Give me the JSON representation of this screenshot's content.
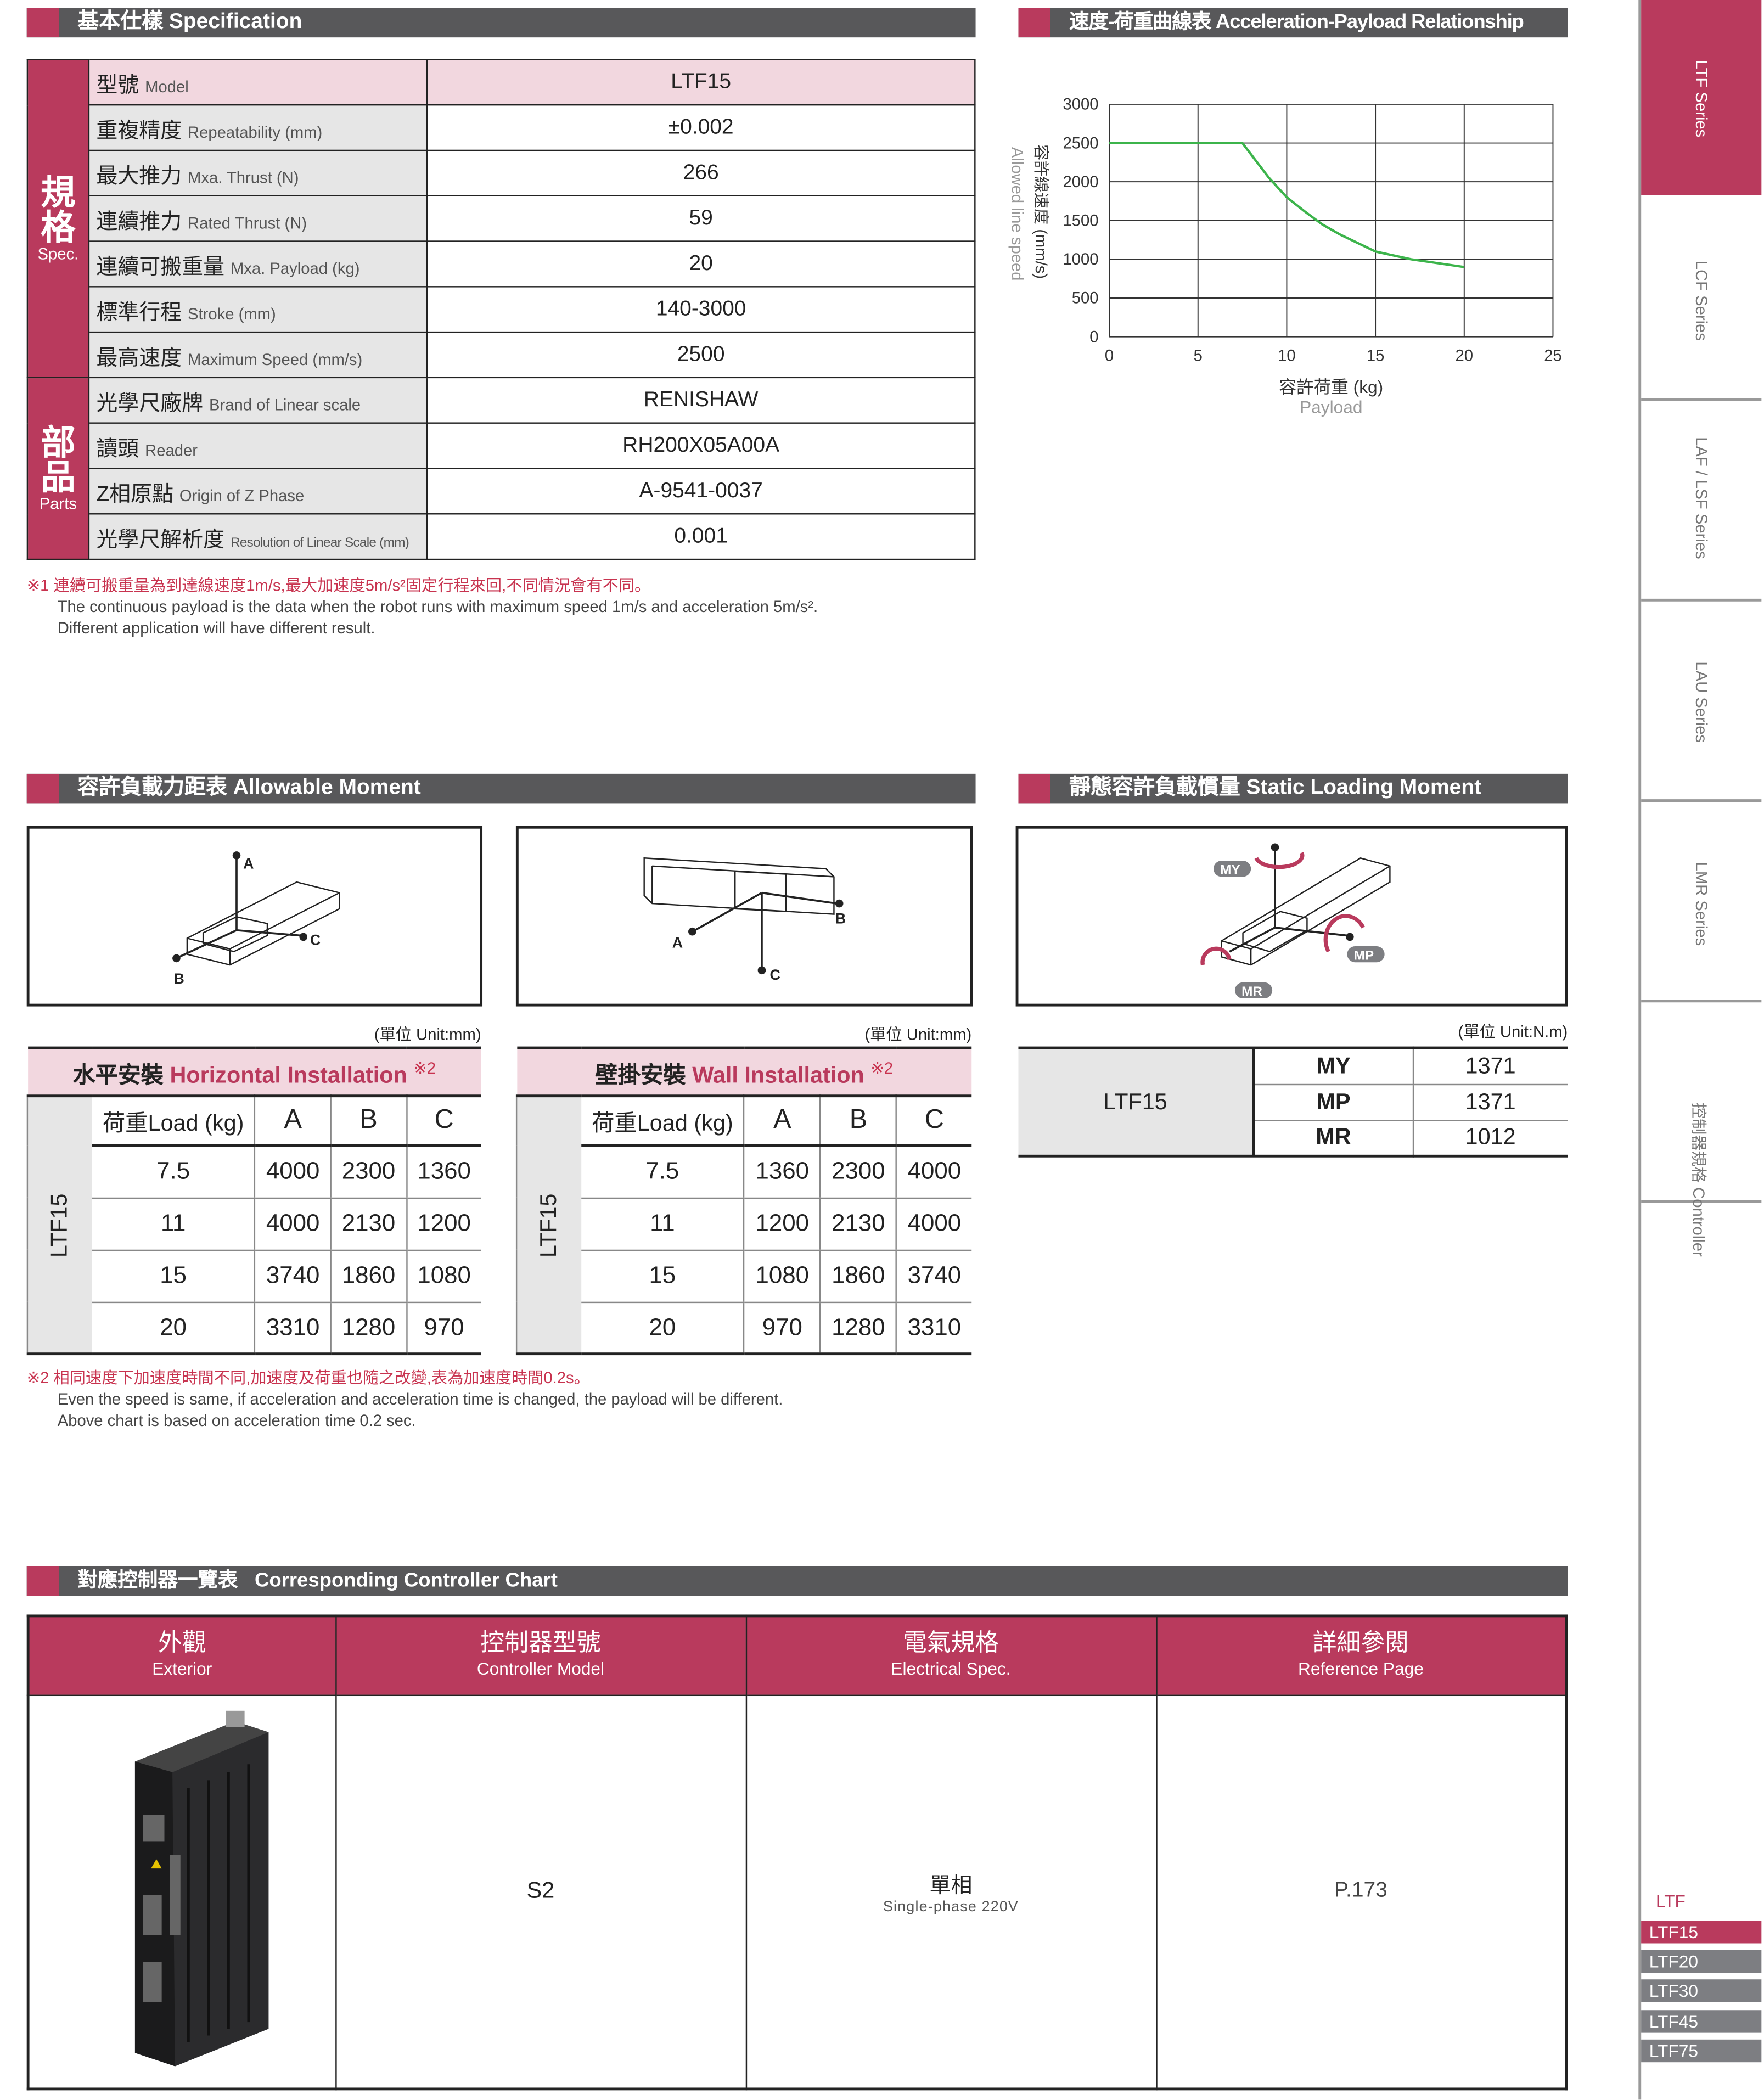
{
  "spec": {
    "title": "基本仕樣 Specification",
    "group_spec": {
      "zh": "規格",
      "en": "Spec."
    },
    "group_parts": {
      "zh": "部品",
      "en": "Parts"
    },
    "rows": [
      {
        "zh": "型號",
        "en": "Model",
        "value": "LTF15"
      },
      {
        "zh": "重複精度",
        "en": "Repeatability (mm)",
        "value": "±0.002"
      },
      {
        "zh": "最大推力",
        "en": "Mxa. Thrust (N)",
        "value": "266"
      },
      {
        "zh": "連續推力",
        "en": "Rated Thrust (N)",
        "value": "59"
      },
      {
        "zh": "連續可搬重量",
        "en": "Mxa. Payload (kg)",
        "value": "20"
      },
      {
        "zh": "標準行程",
        "en": "Stroke (mm)",
        "value": "140-3000"
      },
      {
        "zh": "最高速度",
        "en": "Maximum Speed (mm/s)",
        "value": "2500"
      },
      {
        "zh": "光學尺廠牌",
        "en": "Brand of Linear scale",
        "value": "RENISHAW"
      },
      {
        "zh": "讀頭",
        "en": "Reader",
        "value": "RH200X05A00A"
      },
      {
        "zh": "Z相原點",
        "en": "Origin of Z Phase",
        "value": "A-9541-0037"
      },
      {
        "zh": "光學尺解析度",
        "en": "Resolution of Linear Scale (mm)",
        "value": "0.001"
      }
    ],
    "note1_zh": "※1 連續可搬重量為到達線速度1m/s,最大加速度5m/s²固定行程來回,不同情況會有不同。",
    "note1_en1": "The continuous payload is the data when the robot runs with maximum speed 1m/s and acceleration 5m/s².",
    "note1_en2": "Different application will have different result."
  },
  "chart_section": {
    "title": "速度-荷重曲線表 Acceleration-Payload Relationship"
  },
  "chart_data": {
    "type": "line",
    "title": "",
    "xlabel": "容許荷重 (kg)",
    "xlabel_en": "Payload",
    "ylabel": "容許線速度 (mm/s)",
    "ylabel_en": "Allowed line speed",
    "xlim": [
      0,
      25
    ],
    "ylim": [
      0,
      3000
    ],
    "xticks": [
      0,
      5,
      10,
      15,
      20,
      25
    ],
    "yticks": [
      0,
      500,
      1000,
      1500,
      2000,
      2500,
      3000
    ],
    "grid": true,
    "line_color": "#3cb44b",
    "x": [
      0,
      7.5,
      9,
      10,
      11,
      12,
      13,
      15,
      17,
      20
    ],
    "y": [
      2500,
      2500,
      2050,
      1800,
      1620,
      1450,
      1320,
      1100,
      1000,
      900
    ]
  },
  "moment": {
    "title": "容許負載力距表 Allowable Moment",
    "unit": "(單位 Unit:mm)",
    "note_mark": "※2",
    "axes": {
      "a": "A",
      "b": "B",
      "c": "C"
    },
    "horizontal": {
      "title_zh": "水平安裝",
      "title_en": "Horizontal Installation",
      "model": "LTF15",
      "headers": [
        "荷重Load (kg)",
        "A",
        "B",
        "C"
      ],
      "rows": [
        [
          "7.5",
          "4000",
          "2300",
          "1360"
        ],
        [
          "11",
          "4000",
          "2130",
          "1200"
        ],
        [
          "15",
          "3740",
          "1860",
          "1080"
        ],
        [
          "20",
          "3310",
          "1280",
          "970"
        ]
      ]
    },
    "wall": {
      "title_zh": "壁掛安裝",
      "title_en": "Wall Installation",
      "model": "LTF15",
      "headers": [
        "荷重Load (kg)",
        "A",
        "B",
        "C"
      ],
      "rows": [
        [
          "7.5",
          "1360",
          "2300",
          "4000"
        ],
        [
          "11",
          "1200",
          "2130",
          "4000"
        ],
        [
          "15",
          "1080",
          "1860",
          "3740"
        ],
        [
          "20",
          "970",
          "1280",
          "3310"
        ]
      ]
    },
    "note2_zh": "※2 相同速度下加速度時間不同,加速度及荷重也隨之改變,表為加速度時間0.2s。",
    "note2_en1": "Even the speed is same, if acceleration and acceleration time is changed, the payload will be different.",
    "note2_en2": "Above chart is based on acceleration time 0.2 sec."
  },
  "static": {
    "title": "靜態容許負載慣量 Static Loading Moment",
    "unit": "(單位 Unit:N.m)",
    "model": "LTF15",
    "labels": {
      "my": "MY",
      "mp": "MP",
      "mr": "MR"
    },
    "rows": [
      {
        "k": "MY",
        "v": "1371"
      },
      {
        "k": "MP",
        "v": "1371"
      },
      {
        "k": "MR",
        "v": "1012"
      }
    ]
  },
  "controller": {
    "title_zh": "對應控制器一覽表",
    "title_en": "Corresponding Controller Chart",
    "headers": [
      {
        "zh": "外觀",
        "en": "Exterior"
      },
      {
        "zh": "控制器型號",
        "en": "Controller Model"
      },
      {
        "zh": "電氣規格",
        "en": "Electrical Spec."
      },
      {
        "zh": "詳細參閱",
        "en": "Reference Page"
      }
    ],
    "model": "S2",
    "elec_zh": "單相",
    "elec_en": "Single-phase 220V",
    "page": "P.173"
  },
  "side_tabs": [
    "LTF Series",
    "LCF Series",
    "LAF / LSF Series",
    "LAU Series",
    "LMR Series",
    "控制器規格 Controller"
  ],
  "series_label": "LTF",
  "models": [
    "LTF15",
    "LTF20",
    "LTF30",
    "LTF45",
    "LTF75"
  ],
  "colors": {
    "accent": "#b93a5d",
    "header": "#58585a",
    "tab_gray": "#7d7e82"
  }
}
